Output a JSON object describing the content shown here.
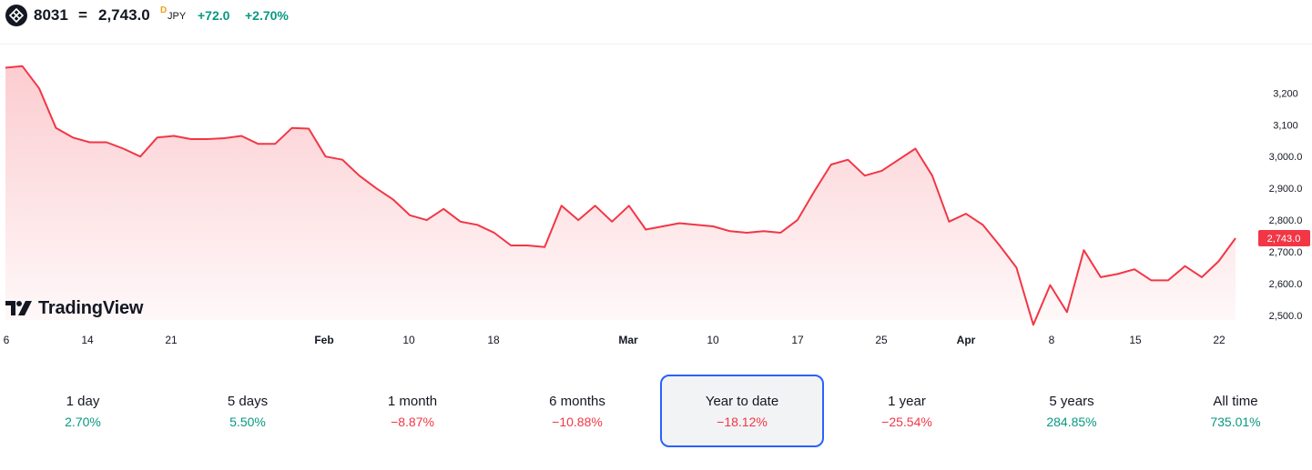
{
  "header": {
    "symbol": "8031",
    "separator": "=",
    "price": "2,743.0",
    "delayed_marker": "D",
    "currency": "JPY",
    "change_abs": "+72.0",
    "change_pct": "+2.70%",
    "logo_icon": "diamond-grid-logo-icon"
  },
  "watermark": {
    "text": "TradingView",
    "icon": "tradingview-logo-icon"
  },
  "colors": {
    "line": "#f23645",
    "positive": "#089981",
    "negative": "#f23645",
    "active_border": "#2962ff",
    "price_badge": "#f23645"
  },
  "chart_data": {
    "type": "area",
    "x_labels": [
      "6",
      "14",
      "21",
      "Feb",
      "10",
      "18",
      "Mar",
      "10",
      "17",
      "25",
      "Apr",
      "8",
      "15",
      "22"
    ],
    "y_ticks": [
      "3,200",
      "3,100",
      "3,000.0",
      "2,900.0",
      "2,800.0",
      "2,700.0",
      "2,600.0",
      "2,500.0"
    ],
    "y_tick_values": [
      3200,
      3100,
      3000,
      2900,
      2800,
      2700,
      2600,
      2500
    ],
    "ylim": [
      2465,
      3290
    ],
    "last_price_label": "2,743.0",
    "last_price": 2743,
    "grid": false,
    "series": [
      {
        "values": [
          3280,
          3285,
          3215,
          3090,
          3060,
          3045,
          3045,
          3025,
          3000,
          3060,
          3065,
          3055,
          3055,
          3058,
          3065,
          3040,
          3040,
          3090,
          3088,
          3000,
          2990,
          2940,
          2900,
          2865,
          2815,
          2800,
          2835,
          2795,
          2785,
          2760,
          2720,
          2720,
          2715,
          2845,
          2800,
          2845,
          2795,
          2845,
          2770,
          2780,
          2790,
          2785,
          2780,
          2765,
          2760,
          2765,
          2760,
          2800,
          2890,
          2975,
          2990,
          2940,
          2955,
          2990,
          3025,
          2940,
          2795,
          2820,
          2785,
          2720,
          2650,
          2470,
          2595,
          2510,
          2705,
          2620,
          2630,
          2645,
          2610,
          2610,
          2655,
          2620,
          2670,
          2743
        ]
      }
    ]
  },
  "periods": [
    {
      "label": "1 day",
      "value": "2.70%",
      "sign": "pos",
      "active": false
    },
    {
      "label": "5 days",
      "value": "5.50%",
      "sign": "pos",
      "active": false
    },
    {
      "label": "1 month",
      "value": "−8.87%",
      "sign": "neg",
      "active": false
    },
    {
      "label": "6 months",
      "value": "−10.88%",
      "sign": "neg",
      "active": false
    },
    {
      "label": "Year to date",
      "value": "−18.12%",
      "sign": "neg",
      "active": true
    },
    {
      "label": "1 year",
      "value": "−25.54%",
      "sign": "neg",
      "active": false
    },
    {
      "label": "5 years",
      "value": "284.85%",
      "sign": "pos",
      "active": false
    },
    {
      "label": "All time",
      "value": "735.01%",
      "sign": "pos",
      "active": false
    }
  ]
}
